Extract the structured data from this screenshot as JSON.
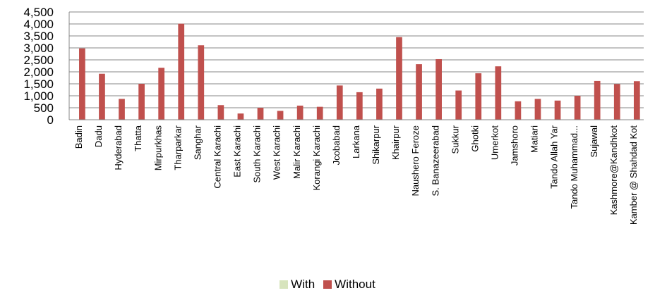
{
  "chart_data": {
    "type": "bar",
    "categories": [
      "Badin",
      "Dadu",
      "Hyderabad",
      "Thatta",
      "Mirpurkhas",
      "Tharparkar",
      "Sanghar",
      "Central Karachi",
      "East Karachi",
      "South  Karachi",
      "West Karachi",
      "Malir Karachi",
      "Korangi Karachi",
      "Jcobabad",
      "Larkana",
      "Shikarpur",
      "Khairpur",
      "Naushero Feroze",
      "S. Banazeerabad",
      "Sukkur",
      "Ghotki",
      "Umerkot",
      "Jamshoro",
      "Matiari",
      "Tando Allah Yar",
      "Tando Muhammad...",
      "Sujawal",
      "Kashmore@Kandhkot",
      "Kamber @ Shahdad Kot"
    ],
    "series": [
      {
        "name": "With",
        "color": "#d7e4bd",
        "values": [
          0,
          0,
          0,
          0,
          0,
          0,
          0,
          0,
          0,
          0,
          0,
          0,
          0,
          0,
          0,
          0,
          0,
          0,
          0,
          0,
          0,
          0,
          0,
          0,
          0,
          0,
          0,
          0,
          0
        ]
      },
      {
        "name": "Without",
        "color": "#c0504d",
        "values": [
          2980,
          1920,
          870,
          1500,
          2170,
          4010,
          3110,
          610,
          260,
          500,
          370,
          590,
          540,
          1430,
          1150,
          1300,
          3450,
          2320,
          2530,
          1220,
          1940,
          2230,
          770,
          870,
          800,
          1000,
          1620,
          1490,
          1610
        ]
      }
    ],
    "y_ticks": [
      "0",
      "500",
      "1,000",
      "1,500",
      "2,000",
      "2,500",
      "3,000",
      "3,500",
      "4,000",
      "4,500"
    ],
    "ylim": [
      0,
      4500
    ],
    "grid": true,
    "legend_position": "bottom"
  }
}
